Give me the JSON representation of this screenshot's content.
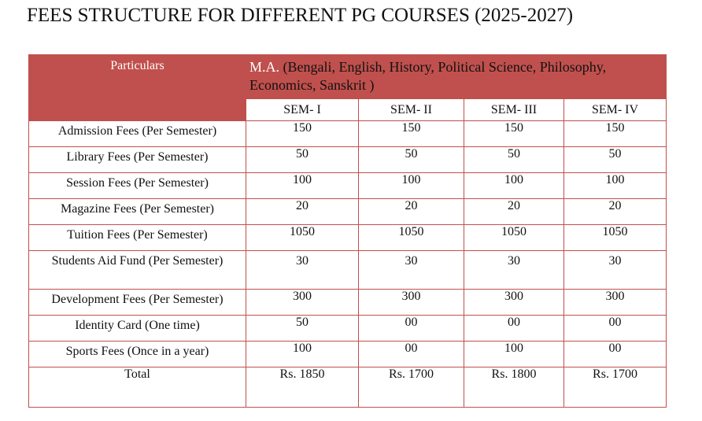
{
  "title": "FEES STRUCTURE FOR DIFFERENT PG COURSES (2025-2027)",
  "header": {
    "particulars_label": "Particulars",
    "course_abbr": "M.A.",
    "course_subjects": " (Bengali, English, History, Political Science, Philosophy, Economics, Sanskrit )"
  },
  "semesters": [
    "SEM- I",
    "SEM- II",
    "SEM- III",
    "SEM- IV"
  ],
  "rows": [
    {
      "label": "Admission Fees (Per Semester)",
      "values": [
        "150",
        "150",
        "150",
        "150"
      ]
    },
    {
      "label": "Library Fees (Per Semester)",
      "values": [
        "50",
        "50",
        "50",
        "50"
      ]
    },
    {
      "label": "Session Fees (Per Semester)",
      "values": [
        "100",
        "100",
        "100",
        "100"
      ]
    },
    {
      "label": "Magazine Fees (Per Semester)",
      "values": [
        "20",
        "20",
        "20",
        "20"
      ]
    },
    {
      "label": "Tuition Fees (Per Semester)",
      "values": [
        "1050",
        "1050",
        "1050",
        "1050"
      ]
    },
    {
      "label": "Students Aid Fund (Per Semester)",
      "values": [
        "30",
        "30",
        "30",
        "30"
      ]
    },
    {
      "label": "Development Fees (Per Semester)",
      "values": [
        "300",
        "300",
        "300",
        "300"
      ]
    },
    {
      "label": "Identity Card (One time)",
      "values": [
        "50",
        "00",
        "00",
        "00"
      ]
    },
    {
      "label": "Sports Fees (Once in a year)",
      "values": [
        "100",
        "00",
        "100",
        "00"
      ]
    }
  ],
  "total": {
    "label": "Total",
    "values": [
      "Rs. 1850",
      "Rs. 1700",
      "Rs. 1800",
      "Rs. 1700"
    ]
  },
  "colors": {
    "header_bg": "#c0504d",
    "border": "#c0504d"
  }
}
